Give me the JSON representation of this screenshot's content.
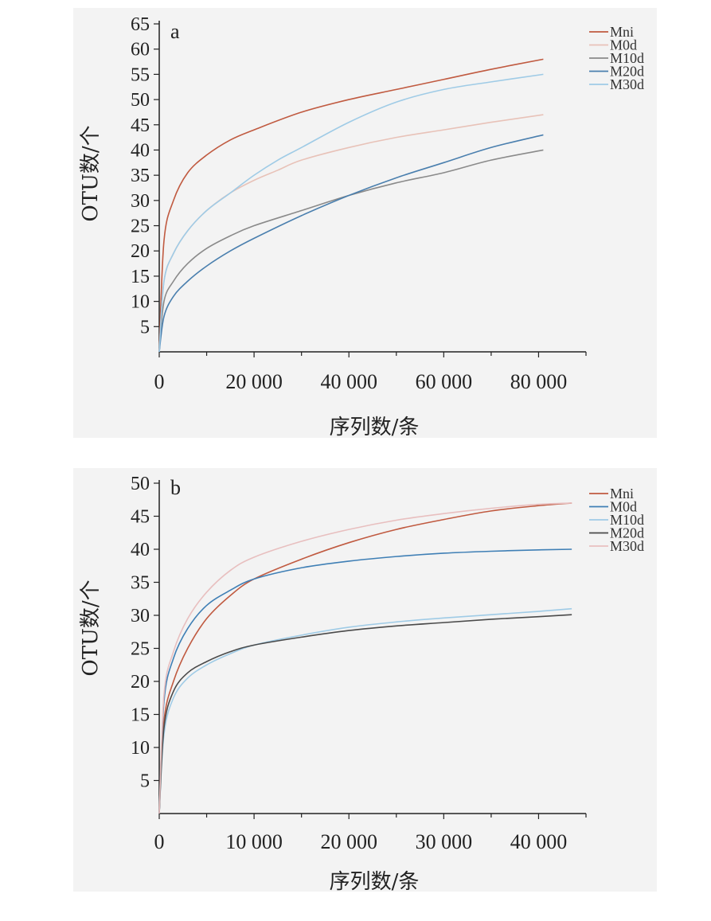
{
  "chart_data": [
    {
      "type": "line",
      "panel_label": "a",
      "xlabel": "序列数/条",
      "ylabel": "OTU数/个",
      "xlim": [
        0,
        90000
      ],
      "ylim": [
        0,
        65
      ],
      "x_ticks": [
        0,
        20000,
        40000,
        60000,
        80000
      ],
      "x_tick_labels": [
        "0",
        "20 000",
        "40 000",
        "60 000",
        "80 000"
      ],
      "y_ticks": [
        5,
        10,
        15,
        20,
        25,
        30,
        35,
        40,
        45,
        50,
        55,
        60,
        65
      ],
      "y_tick_labels": [
        "5",
        "10",
        "15",
        "20",
        "25",
        "30",
        "35",
        "40",
        "45",
        "50",
        "55",
        "60",
        "65"
      ],
      "legend": "top-right",
      "grid": false,
      "series": [
        {
          "name": "Mni",
          "color": "#c05a40",
          "x": [
            0,
            1000,
            3000,
            6000,
            10000,
            15000,
            20000,
            30000,
            40000,
            50000,
            60000,
            70000,
            81000
          ],
          "y": [
            0,
            22,
            30,
            35.5,
            39,
            42,
            44,
            47.5,
            50,
            52,
            54,
            56,
            58
          ]
        },
        {
          "name": "M0d",
          "color": "#e8c2b8",
          "x": [
            0,
            1000,
            3000,
            6000,
            10000,
            15000,
            20000,
            25000,
            30000,
            40000,
            50000,
            60000,
            70000,
            81000
          ],
          "y": [
            0,
            14,
            19.5,
            24,
            28,
            31.5,
            34,
            36,
            38,
            40.5,
            42.5,
            44,
            45.5,
            47
          ]
        },
        {
          "name": "M10d",
          "color": "#8a8a8a",
          "x": [
            0,
            1000,
            3000,
            6000,
            10000,
            15000,
            20000,
            30000,
            40000,
            50000,
            60000,
            70000,
            81000
          ],
          "y": [
            0,
            10,
            14,
            17.5,
            20.5,
            23,
            25,
            28,
            31,
            33.5,
            35.5,
            38,
            40
          ]
        },
        {
          "name": "M20d",
          "color": "#4a7fae",
          "x": [
            0,
            1000,
            3000,
            6000,
            10000,
            15000,
            20000,
            30000,
            40000,
            50000,
            60000,
            70000,
            81000
          ],
          "y": [
            0,
            7,
            11,
            14,
            17,
            20,
            22.5,
            27,
            31,
            34.5,
            37.5,
            40.5,
            43
          ]
        },
        {
          "name": "M30d",
          "color": "#9fcbe6",
          "x": [
            0,
            1000,
            3000,
            6000,
            10000,
            15000,
            20000,
            25000,
            30000,
            40000,
            50000,
            60000,
            70000,
            81000
          ],
          "y": [
            0,
            14,
            19.5,
            24,
            28,
            31.5,
            35,
            38,
            40.5,
            45.5,
            49.5,
            52,
            53.5,
            55
          ]
        }
      ]
    },
    {
      "type": "line",
      "panel_label": "b",
      "xlabel": "序列数/条",
      "ylabel": "OTU数/个",
      "xlim": [
        0,
        45000
      ],
      "ylim": [
        0,
        50
      ],
      "x_ticks": [
        0,
        10000,
        20000,
        30000,
        40000
      ],
      "x_tick_labels": [
        "0",
        "10 000",
        "20 000",
        "30 000",
        "40 000"
      ],
      "y_ticks": [
        5,
        10,
        15,
        20,
        25,
        30,
        35,
        40,
        45,
        50
      ],
      "y_tick_labels": [
        "5",
        "10",
        "15",
        "20",
        "25",
        "30",
        "35",
        "40",
        "45",
        "50"
      ],
      "legend": "top-right",
      "grid": false,
      "series": [
        {
          "name": "Mni",
          "color": "#c05a40",
          "x": [
            0,
            500,
            1500,
            3000,
            5000,
            7500,
            10000,
            15000,
            20000,
            25000,
            30000,
            35000,
            40000,
            43500
          ],
          "y": [
            0,
            14,
            20,
            25,
            29.5,
            33,
            35.5,
            38.5,
            41,
            43,
            44.5,
            45.8,
            46.6,
            47
          ]
        },
        {
          "name": "M0d",
          "color": "#3f7fb5",
          "x": [
            0,
            500,
            1500,
            3000,
            5000,
            7500,
            10000,
            15000,
            20000,
            25000,
            30000,
            35000,
            40000,
            43500
          ],
          "y": [
            0,
            17,
            23.5,
            28,
            31.5,
            33.8,
            35.5,
            37.2,
            38.2,
            38.9,
            39.4,
            39.7,
            39.9,
            40
          ]
        },
        {
          "name": "M10d",
          "color": "#9fcbe6",
          "x": [
            0,
            500,
            1500,
            3000,
            5000,
            7500,
            10000,
            15000,
            20000,
            25000,
            30000,
            35000,
            40000,
            43500
          ],
          "y": [
            0,
            12,
            17.5,
            20.5,
            22.5,
            24.2,
            25.5,
            27,
            28.2,
            29,
            29.6,
            30.1,
            30.6,
            31
          ]
        },
        {
          "name": "M20d",
          "color": "#4a4a4a",
          "x": [
            0,
            500,
            1500,
            3000,
            5000,
            7500,
            10000,
            15000,
            20000,
            25000,
            30000,
            35000,
            40000,
            43500
          ],
          "y": [
            0,
            13,
            18.5,
            21.3,
            23,
            24.5,
            25.5,
            26.7,
            27.7,
            28.4,
            28.9,
            29.4,
            29.8,
            30.1
          ]
        },
        {
          "name": "M30d",
          "color": "#e8bfbf",
          "x": [
            0,
            500,
            1500,
            3000,
            5000,
            7500,
            10000,
            15000,
            20000,
            25000,
            30000,
            35000,
            40000,
            43500
          ],
          "y": [
            0,
            18,
            24.5,
            29.5,
            33.5,
            36.8,
            38.8,
            41.2,
            43,
            44.4,
            45.4,
            46.2,
            46.8,
            47
          ]
        }
      ]
    }
  ]
}
